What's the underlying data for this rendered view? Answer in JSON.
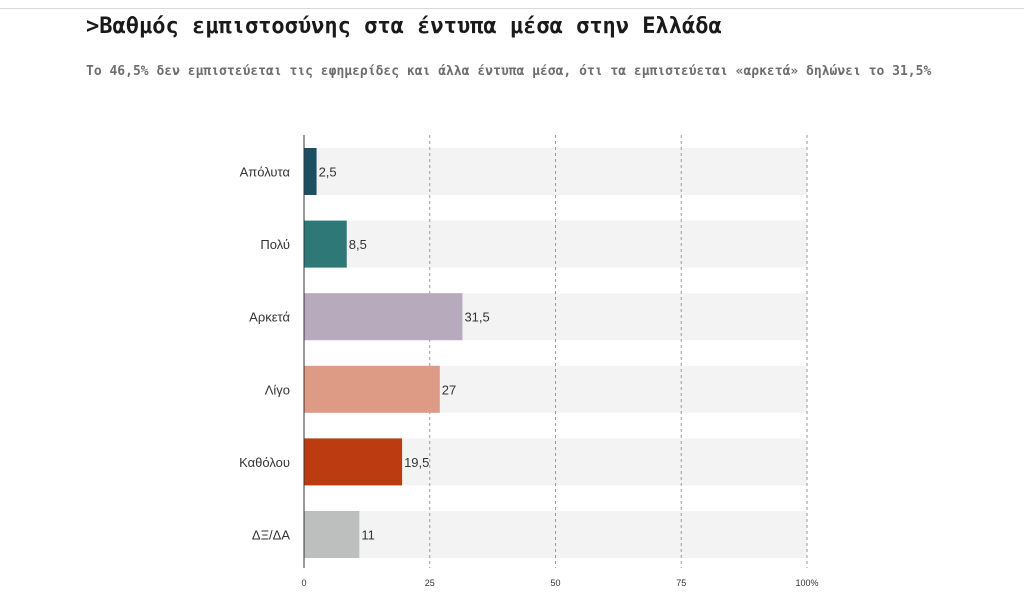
{
  "header": {
    "title": ">Βαθμός εμπιστοσύνης στα έντυπα μέσα στην Ελλάδα",
    "subtitle": "Το 46,5% δεν εμπιστεύεται τις εφημερίδες και άλλα έντυπα μέσα, ότι τα εμπιστεύεται «αρκετά» δηλώνει το 31,5%"
  },
  "chart_data": {
    "type": "bar",
    "orientation": "horizontal",
    "title": ">Βαθμός εμπιστοσύνης στα έντυπα μέσα στην Ελλάδα",
    "subtitle": "Το 46,5% δεν εμπιστεύεται τις εφημερίδες και άλλα έντυπα μέσα, ότι τα εμπιστεύεται «αρκετά» δηλώνει το 31,5%",
    "xlabel": "",
    "ylabel": "",
    "categories": [
      "Απόλυτα",
      "Πολύ",
      "Αρκετά",
      "Λίγο",
      "Καθόλου",
      "ΔΞ/ΔΑ"
    ],
    "values": [
      2.5,
      8.5,
      31.5,
      27,
      19.5,
      11
    ],
    "value_labels": [
      "2,5",
      "8,5",
      "31,5",
      "27",
      "19,5",
      "11"
    ],
    "colors": [
      "#1d4f63",
      "#2f7878",
      "#b8aabd",
      "#dd9a84",
      "#bd3b10",
      "#bcbfbe"
    ],
    "xlim": [
      0,
      100
    ],
    "ticks": [
      0,
      25,
      50,
      75,
      100
    ],
    "tick_labels": [
      "0",
      "25",
      "50",
      "75",
      "100%"
    ],
    "grid": true,
    "background_band_color": "#f3f3f3",
    "gridline_color": "#9a9a9a"
  }
}
